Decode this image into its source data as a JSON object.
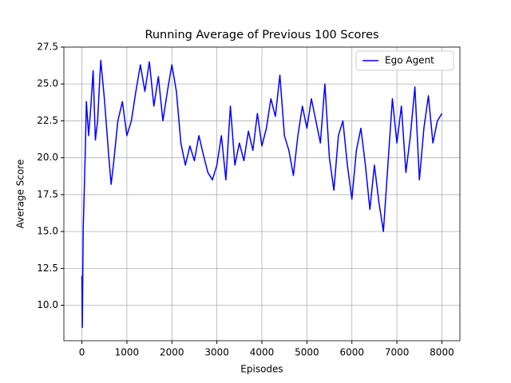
{
  "chart_data": {
    "type": "line",
    "title": "Running Average of Previous 100 Scores",
    "x_label": "Episodes",
    "y_label": "Average Score",
    "x": [
      0,
      10,
      30,
      60,
      80,
      100,
      150,
      200,
      250,
      300,
      350,
      400,
      420,
      500,
      600,
      650,
      700,
      800,
      900,
      1000,
      1100,
      1200,
      1300,
      1400,
      1500,
      1600,
      1700,
      1800,
      1900,
      2000,
      2100,
      2200,
      2300,
      2400,
      2500,
      2600,
      2700,
      2800,
      2900,
      3000,
      3100,
      3200,
      3300,
      3400,
      3500,
      3600,
      3700,
      3800,
      3900,
      4000,
      4100,
      4200,
      4300,
      4400,
      4500,
      4600,
      4700,
      4800,
      4900,
      5000,
      5100,
      5200,
      5300,
      5400,
      5500,
      5600,
      5700,
      5800,
      5900,
      6000,
      6100,
      6200,
      6300,
      6400,
      6500,
      6600,
      6700,
      6800,
      6900,
      7000,
      7100,
      7200,
      7300,
      7400,
      7500,
      7600,
      7700,
      7800,
      7900,
      8000
    ],
    "series": [
      {
        "name": "Ego Agent",
        "color": "#0000ff",
        "values": [
          12.0,
          8.5,
          15.3,
          18.5,
          21.0,
          23.8,
          21.5,
          23.5,
          25.9,
          21.2,
          22.5,
          25.5,
          26.6,
          24.0,
          20.0,
          18.2,
          19.5,
          22.5,
          23.8,
          21.5,
          22.5,
          24.5,
          26.3,
          24.5,
          26.5,
          23.5,
          25.5,
          22.5,
          24.5,
          26.3,
          24.5,
          21.0,
          19.5,
          20.8,
          19.8,
          21.5,
          20.2,
          19.0,
          18.5,
          19.5,
          21.5,
          18.5,
          23.5,
          19.5,
          21.0,
          19.8,
          21.8,
          20.5,
          23.0,
          20.8,
          22.0,
          24.0,
          22.8,
          25.6,
          21.5,
          20.5,
          18.8,
          21.5,
          23.5,
          22.0,
          24.0,
          22.5,
          21.0,
          25.0,
          20.0,
          17.8,
          21.5,
          22.5,
          19.5,
          17.2,
          20.5,
          22.0,
          19.5,
          16.5,
          19.5,
          17.0,
          15.0,
          19.5,
          24.0,
          21.0,
          23.5,
          19.0,
          21.5,
          24.8,
          18.5,
          22.0,
          24.2,
          21.0,
          22.5,
          23.0
        ]
      }
    ],
    "xlim": [
      -400,
      8400
    ],
    "ylim": [
      7.6,
      27.5
    ],
    "xticks": [
      0,
      1000,
      2000,
      3000,
      4000,
      5000,
      6000,
      7000,
      8000
    ],
    "yticks": [
      {
        "value": 10,
        "label": "10.0"
      },
      12.5,
      {
        "value": 15,
        "label": "15.0"
      },
      17.5,
      {
        "value": 20,
        "label": "20.0"
      },
      22.5,
      {
        "value": 25,
        "label": "25.0"
      },
      27.5
    ],
    "grid": true,
    "legend": "upper right"
  }
}
